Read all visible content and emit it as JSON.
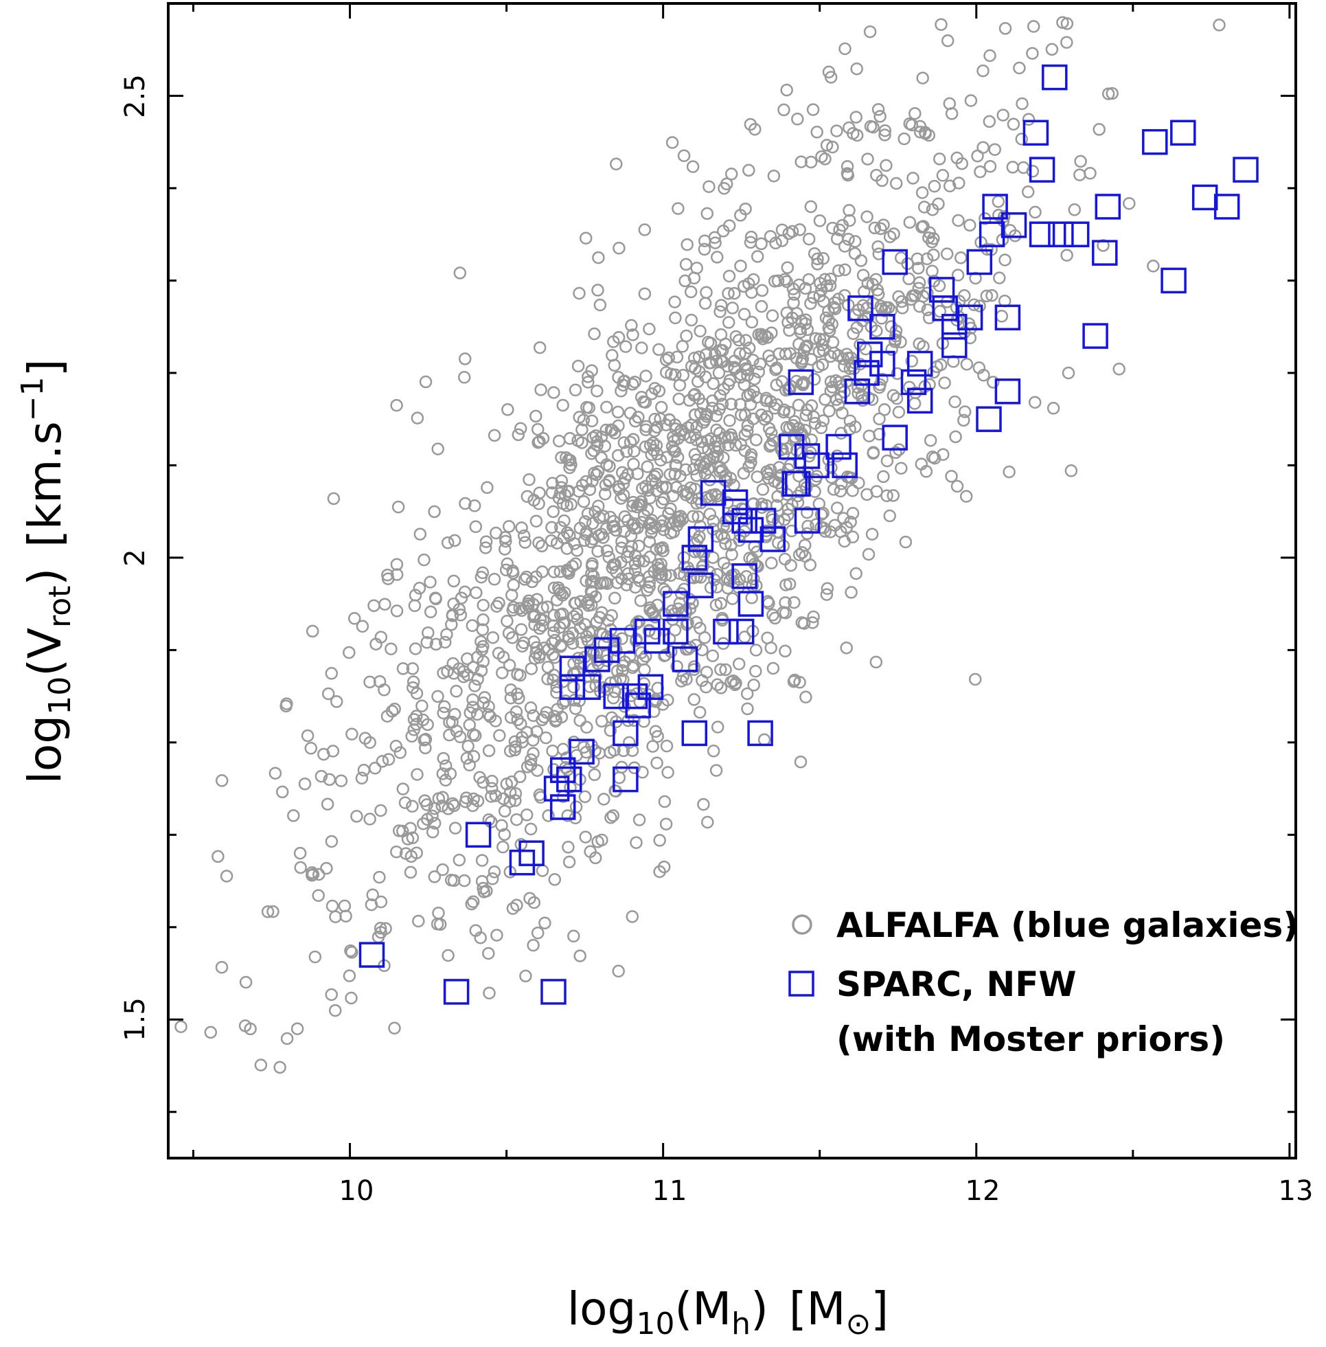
{
  "chart_data": {
    "type": "scatter",
    "xlabel": {
      "prefix": "log",
      "sub": "10",
      "open": "(M",
      "var_sub": "h",
      "close": ")",
      "unit_open": "[M",
      "unit_sub": "⊙",
      "unit_close": "]"
    },
    "ylabel": {
      "prefix": "log",
      "sub": "10",
      "open": "(V",
      "var_sub": "rot",
      "close": ")",
      "unit_open": "[km.s",
      "unit_sup": "−1",
      "unit_close": "]"
    },
    "xlim": [
      9.42,
      13.02
    ],
    "ylim": [
      1.35,
      2.6
    ],
    "xticks_major": [
      10,
      11,
      12,
      13
    ],
    "xticks_minor": [
      9.5,
      10.5,
      11.5,
      12.5
    ],
    "xtick_labels": [
      "10",
      "11",
      "12",
      "13"
    ],
    "yticks_major": [
      1.5,
      2.0,
      2.5
    ],
    "yticks_minor": [
      1.4,
      1.6,
      1.7,
      1.8,
      1.9,
      2.1,
      2.2,
      2.3,
      2.4
    ],
    "ytick_labels": [
      "1.5",
      "2",
      "2.5"
    ],
    "colors": {
      "alfalfa": "#999999",
      "sparc": "#1515e0",
      "axis": "#000000"
    },
    "legend": {
      "position": "bottom-right",
      "entries": [
        {
          "marker": "circle",
          "label": "ALFALFA (blue galaxies)"
        },
        {
          "marker": "square",
          "label_lines": [
            "SPARC, NFW",
            "(with Moster priors)"
          ]
        }
      ]
    },
    "series": [
      {
        "name": "ALFALFA (blue galaxies)",
        "marker": "circle",
        "n_points": 1900,
        "center": [
          11.05,
          2.05
        ],
        "slope": 0.3,
        "scatter_x": 0.55,
        "scatter_y": 0.14
      },
      {
        "name": "SPARC, NFW (with Moster priors)",
        "marker": "square",
        "points": [
          [
            12.25,
            2.52
          ],
          [
            12.19,
            2.46
          ],
          [
            12.21,
            2.42
          ],
          [
            12.57,
            2.45
          ],
          [
            12.66,
            2.46
          ],
          [
            12.86,
            2.42
          ],
          [
            12.73,
            2.39
          ],
          [
            12.8,
            2.38
          ],
          [
            12.42,
            2.38
          ],
          [
            12.06,
            2.38
          ],
          [
            12.12,
            2.36
          ],
          [
            12.05,
            2.35
          ],
          [
            12.21,
            2.35
          ],
          [
            12.27,
            2.35
          ],
          [
            12.32,
            2.35
          ],
          [
            12.41,
            2.33
          ],
          [
            12.01,
            2.32
          ],
          [
            11.74,
            2.32
          ],
          [
            12.63,
            2.3
          ],
          [
            11.89,
            2.29
          ],
          [
            11.9,
            2.27
          ],
          [
            11.98,
            2.26
          ],
          [
            12.1,
            2.26
          ],
          [
            11.63,
            2.27
          ],
          [
            11.7,
            2.25
          ],
          [
            12.38,
            2.24
          ],
          [
            11.93,
            2.25
          ],
          [
            11.93,
            2.23
          ],
          [
            11.66,
            2.22
          ],
          [
            11.7,
            2.21
          ],
          [
            11.82,
            2.21
          ],
          [
            11.65,
            2.2
          ],
          [
            11.8,
            2.19
          ],
          [
            11.44,
            2.19
          ],
          [
            11.62,
            2.18
          ],
          [
            11.82,
            2.17
          ],
          [
            12.1,
            2.18
          ],
          [
            12.04,
            2.15
          ],
          [
            11.74,
            2.13
          ],
          [
            11.41,
            2.12
          ],
          [
            11.56,
            2.12
          ],
          [
            11.46,
            2.11
          ],
          [
            11.49,
            2.1
          ],
          [
            11.58,
            2.1
          ],
          [
            11.42,
            2.08
          ],
          [
            11.43,
            2.08
          ],
          [
            11.16,
            2.07
          ],
          [
            11.23,
            2.06
          ],
          [
            11.23,
            2.05
          ],
          [
            11.26,
            2.04
          ],
          [
            11.32,
            2.04
          ],
          [
            11.46,
            2.04
          ],
          [
            11.28,
            2.03
          ],
          [
            11.35,
            2.02
          ],
          [
            11.12,
            2.02
          ],
          [
            11.1,
            2.0
          ],
          [
            11.26,
            1.98
          ],
          [
            11.12,
            1.97
          ],
          [
            11.04,
            1.95
          ],
          [
            11.28,
            1.95
          ],
          [
            10.95,
            1.92
          ],
          [
            11.04,
            1.92
          ],
          [
            11.25,
            1.92
          ],
          [
            11.2,
            1.92
          ],
          [
            10.98,
            1.91
          ],
          [
            10.87,
            1.91
          ],
          [
            10.82,
            1.9
          ],
          [
            10.79,
            1.89
          ],
          [
            10.71,
            1.88
          ],
          [
            11.07,
            1.89
          ],
          [
            10.71,
            1.86
          ],
          [
            10.76,
            1.86
          ],
          [
            10.85,
            1.85
          ],
          [
            10.91,
            1.85
          ],
          [
            10.92,
            1.84
          ],
          [
            10.96,
            1.86
          ],
          [
            10.88,
            1.81
          ],
          [
            11.1,
            1.81
          ],
          [
            11.31,
            1.81
          ],
          [
            10.74,
            1.79
          ],
          [
            10.68,
            1.77
          ],
          [
            10.88,
            1.76
          ],
          [
            10.66,
            1.75
          ],
          [
            10.7,
            1.76
          ],
          [
            10.68,
            1.73
          ],
          [
            10.41,
            1.7
          ],
          [
            10.58,
            1.68
          ],
          [
            10.55,
            1.67
          ],
          [
            10.07,
            1.57
          ],
          [
            10.34,
            1.53
          ],
          [
            10.65,
            1.53
          ]
        ]
      }
    ]
  }
}
